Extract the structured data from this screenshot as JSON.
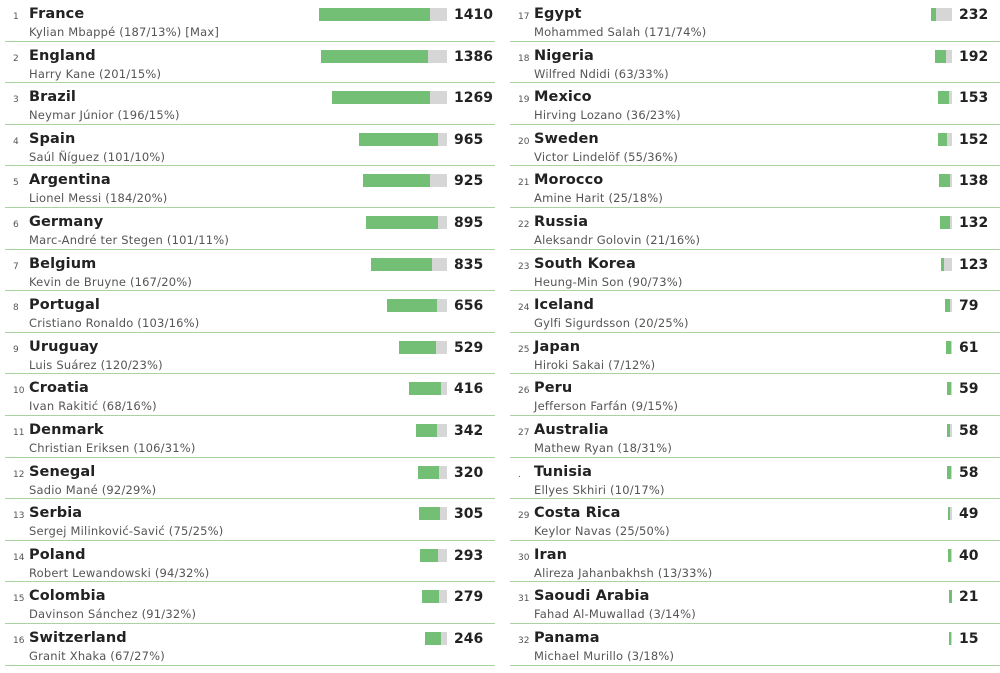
{
  "chart_data": {
    "type": "bar",
    "title": "",
    "max_label": "[Max]",
    "items": [
      {
        "rank": "1",
        "country": "France",
        "player": "Kylian Mbappé (187/13%) [Max]",
        "value": 1410,
        "share": 0.13
      },
      {
        "rank": "2",
        "country": "England",
        "player": "Harry Kane (201/15%)",
        "value": 1386,
        "share": 0.15
      },
      {
        "rank": "3",
        "country": "Brazil",
        "player": "Neymar Júnior (196/15%)",
        "value": 1269,
        "share": 0.15
      },
      {
        "rank": "4",
        "country": "Spain",
        "player": "Saúl Ñíguez (101/10%)",
        "value": 965,
        "share": 0.1
      },
      {
        "rank": "5",
        "country": "Argentina",
        "player": "Lionel Messi (184/20%)",
        "value": 925,
        "share": 0.2
      },
      {
        "rank": "6",
        "country": "Germany",
        "player": "Marc-André ter Stegen (101/11%)",
        "value": 895,
        "share": 0.11
      },
      {
        "rank": "7",
        "country": "Belgium",
        "player": "Kevin de Bruyne (167/20%)",
        "value": 835,
        "share": 0.2
      },
      {
        "rank": "8",
        "country": "Portugal",
        "player": "Cristiano Ronaldo (103/16%)",
        "value": 656,
        "share": 0.16
      },
      {
        "rank": "9",
        "country": "Uruguay",
        "player": "Luis Suárez (120/23%)",
        "value": 529,
        "share": 0.23
      },
      {
        "rank": "10",
        "country": "Croatia",
        "player": "Ivan Rakitić (68/16%)",
        "value": 416,
        "share": 0.16
      },
      {
        "rank": "11",
        "country": "Denmark",
        "player": "Christian Eriksen (106/31%)",
        "value": 342,
        "share": 0.31
      },
      {
        "rank": "12",
        "country": "Senegal",
        "player": "Sadio Mané (92/29%)",
        "value": 320,
        "share": 0.29
      },
      {
        "rank": "13",
        "country": "Serbia",
        "player": "Sergej Milinković-Savić (75/25%)",
        "value": 305,
        "share": 0.25
      },
      {
        "rank": "14",
        "country": "Poland",
        "player": "Robert Lewandowski (94/32%)",
        "value": 293,
        "share": 0.32
      },
      {
        "rank": "15",
        "country": "Colombia",
        "player": "Davinson Sánchez (91/32%)",
        "value": 279,
        "share": 0.32
      },
      {
        "rank": "16",
        "country": "Switzerland",
        "player": "Granit Xhaka (67/27%)",
        "value": 246,
        "share": 0.27
      },
      {
        "rank": "17",
        "country": "Egypt",
        "player": "Mohammed Salah (171/74%)",
        "value": 232,
        "share": 0.74
      },
      {
        "rank": "18",
        "country": "Nigeria",
        "player": "Wilfred Ndidi (63/33%)",
        "value": 192,
        "share": 0.33
      },
      {
        "rank": "19",
        "country": "Mexico",
        "player": "Hirving Lozano (36/23%)",
        "value": 153,
        "share": 0.23
      },
      {
        "rank": "20",
        "country": "Sweden",
        "player": "Victor Lindelöf (55/36%)",
        "value": 152,
        "share": 0.36
      },
      {
        "rank": "21",
        "country": "Morocco",
        "player": "Amine Harit (25/18%)",
        "value": 138,
        "share": 0.18
      },
      {
        "rank": "22",
        "country": "Russia",
        "player": "Aleksandr Golovin (21/16%)",
        "value": 132,
        "share": 0.16
      },
      {
        "rank": "23",
        "country": "South Korea",
        "player": "Heung-Min Son (90/73%)",
        "value": 123,
        "share": 0.73
      },
      {
        "rank": "24",
        "country": "Iceland",
        "player": "Gylfi Sigurdsson (20/25%)",
        "value": 79,
        "share": 0.25
      },
      {
        "rank": "25",
        "country": "Japan",
        "player": "Hiroki Sakai (7/12%)",
        "value": 61,
        "share": 0.12
      },
      {
        "rank": "26",
        "country": "Peru",
        "player": "Jefferson Farfán (9/15%)",
        "value": 59,
        "share": 0.15
      },
      {
        "rank": "27",
        "country": "Australia",
        "player": "Mathew Ryan (18/31%)",
        "value": 58,
        "share": 0.31
      },
      {
        "rank": ".",
        "country": "Tunisia",
        "player": "Ellyes Skhiri (10/17%)",
        "value": 58,
        "share": 0.17
      },
      {
        "rank": "29",
        "country": "Costa Rica",
        "player": "Keylor Navas (25/50%)",
        "value": 49,
        "share": 0.5
      },
      {
        "rank": "30",
        "country": "Iran",
        "player": "Alireza Jahanbakhsh (13/33%)",
        "value": 40,
        "share": 0.33
      },
      {
        "rank": "31",
        "country": "Saoudi Arabia",
        "player": "Fahad Al-Muwallad (3/14%)",
        "value": 21,
        "share": 0.14
      },
      {
        "rank": "32",
        "country": "Panama",
        "player": "Michael Murillo (3/18%)",
        "value": 15,
        "share": 0.18
      }
    ],
    "max_value": 1410,
    "colors": {
      "fill": "#72bf75",
      "remainder": "#d6d6d6",
      "divider": "#a9d4a1"
    }
  }
}
